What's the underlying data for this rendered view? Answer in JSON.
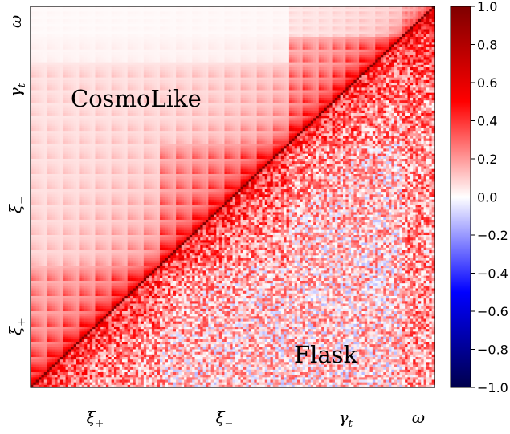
{
  "chart_data": {
    "type": "heatmap",
    "title": "",
    "colormap": "seismic",
    "colorbar": {
      "vmin": -1.0,
      "vmax": 1.0,
      "ticks": [
        "1.0",
        "0.8",
        "0.6",
        "0.4",
        "0.2",
        "0.0",
        "−0.2",
        "−0.4",
        "−0.6",
        "−0.8",
        "−1.0"
      ]
    },
    "x_ticks": [
      {
        "label": "ξ+",
        "main": "ξ",
        "sub": "+"
      },
      {
        "label": "ξ−",
        "main": "ξ",
        "sub": "−"
      },
      {
        "label": "γt",
        "main": "γ",
        "sub": "t"
      },
      {
        "label": "ω",
        "main": "ω",
        "sub": ""
      }
    ],
    "y_ticks": [
      {
        "label": "ω",
        "main": "ω",
        "sub": ""
      },
      {
        "label": "γt",
        "main": "γ",
        "sub": "t"
      },
      {
        "label": "ξ−",
        "main": "ξ",
        "sub": "−"
      },
      {
        "label": "ξ+",
        "main": "ξ",
        "sub": "+"
      }
    ],
    "annotations": [
      {
        "text": "CosmoLike",
        "region": "upper-left triangle"
      },
      {
        "text": "Flask",
        "region": "lower-right triangle"
      }
    ],
    "blocks": [
      {
        "name": "ξ+",
        "fraction": 0.32
      },
      {
        "name": "ξ−",
        "fraction": 0.32
      },
      {
        "name": "γt",
        "fraction": 0.28
      },
      {
        "name": "ω",
        "fraction": 0.08
      }
    ],
    "diagonal_value": 1.0,
    "upper_triangle": "CosmoLike analytic covariance, smooth positive correlations (0 to ~0.6)",
    "lower_triangle": "Flask simulated covariance, noisy correlations (~-0.3 to 0.6)"
  }
}
